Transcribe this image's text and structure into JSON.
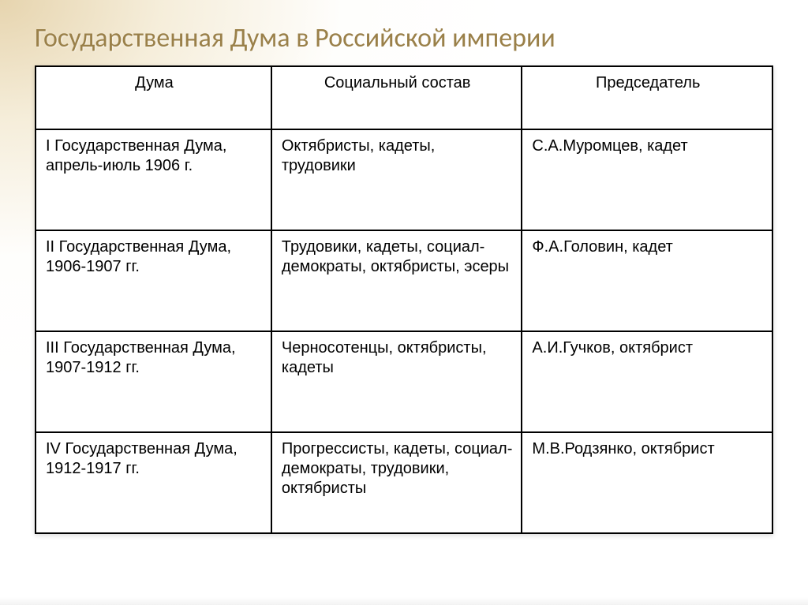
{
  "slide": {
    "title": "Государственная Дума в Российской империи",
    "title_color": "#9a8049",
    "title_fontsize": 34,
    "background_gradient_from": "#e7d4a8",
    "background_gradient_to": "#ffffff"
  },
  "table": {
    "border_color": "#000000",
    "cell_fontsize": 20,
    "cell_text_color": "#000000",
    "columns": [
      {
        "key": "duma",
        "label": "Дума",
        "width_pct": 32,
        "align": "center"
      },
      {
        "key": "composition",
        "label": "Социальный состав",
        "width_pct": 34,
        "align": "center"
      },
      {
        "key": "chairman",
        "label": "Председатель",
        "width_pct": 34,
        "align": "center"
      }
    ],
    "rows": [
      {
        "duma": "I Государственная Дума, апрель-июль 1906 г.",
        "composition": "Октябристы, кадеты, трудовики",
        "chairman": "С.А.Муромцев, кадет"
      },
      {
        "duma": "II Государственная Дума, 1906-1907 гг.",
        "composition": "Трудовики, кадеты, социал-демократы, октябристы, эсеры",
        "chairman": "Ф.А.Головин, кадет"
      },
      {
        "duma": "III Государственная Дума, 1907-1912 гг.",
        "composition": "Черносотенцы, октябристы, кадеты",
        "chairman": "А.И.Гучков, октябрист"
      },
      {
        "duma": "IV Государственная Дума, 1912-1917 гг.",
        "composition": "Прогрессисты, кадеты, социал-демократы, трудовики, октябристы",
        "chairman": "М.В.Родзянко, октябрист"
      }
    ]
  }
}
